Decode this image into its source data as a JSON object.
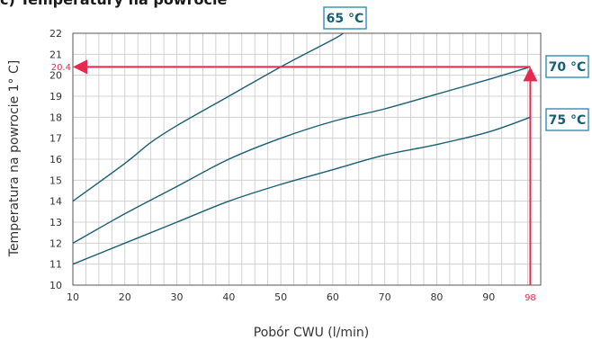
{
  "section_title": "c) Temperatury na powrocie",
  "chart_data": {
    "type": "line",
    "title": "",
    "xlabel": "Pobór CWU (l/min)",
    "ylabel": "Temperatura na powrocie 1° C]",
    "xlim": [
      10,
      100
    ],
    "ylim": [
      10,
      22
    ],
    "x_ticks": [
      "10",
      "20",
      "30",
      "40",
      "50",
      "60",
      "70",
      "80",
      "90"
    ],
    "y_ticks": [
      "10",
      "11",
      "12",
      "13",
      "14",
      "15",
      "16",
      "17",
      "18",
      "19",
      "20",
      "21",
      "22"
    ],
    "grid": true,
    "series": [
      {
        "name": "65 °C",
        "x": [
          10,
          20,
          25,
          30,
          40,
          50,
          60,
          62
        ],
        "y": [
          14,
          15.8,
          16.8,
          17.6,
          19.0,
          20.4,
          21.7,
          22
        ]
      },
      {
        "name": "70 °C",
        "x": [
          10,
          20,
          30,
          40,
          50,
          60,
          70,
          80,
          90,
          98
        ],
        "y": [
          12,
          13.4,
          14.7,
          16.0,
          17.0,
          17.8,
          18.4,
          19.1,
          19.8,
          20.4
        ]
      },
      {
        "name": "75 °C",
        "x": [
          10,
          20,
          30,
          40,
          50,
          60,
          70,
          80,
          90,
          98
        ],
        "y": [
          11,
          12.0,
          13.0,
          14.0,
          14.8,
          15.5,
          16.2,
          16.7,
          17.3,
          18.0
        ]
      }
    ],
    "annotations": {
      "x_marker": {
        "label": "98",
        "value": 98
      },
      "y_marker": {
        "label": "20.4",
        "value": 20.4
      }
    }
  },
  "style": {
    "line_color": "#1a5e73",
    "grid_color": "#c8c8c8",
    "axis_color": "#555555",
    "marker_color": "#e8294f",
    "label_border": "#2f8fb0"
  }
}
